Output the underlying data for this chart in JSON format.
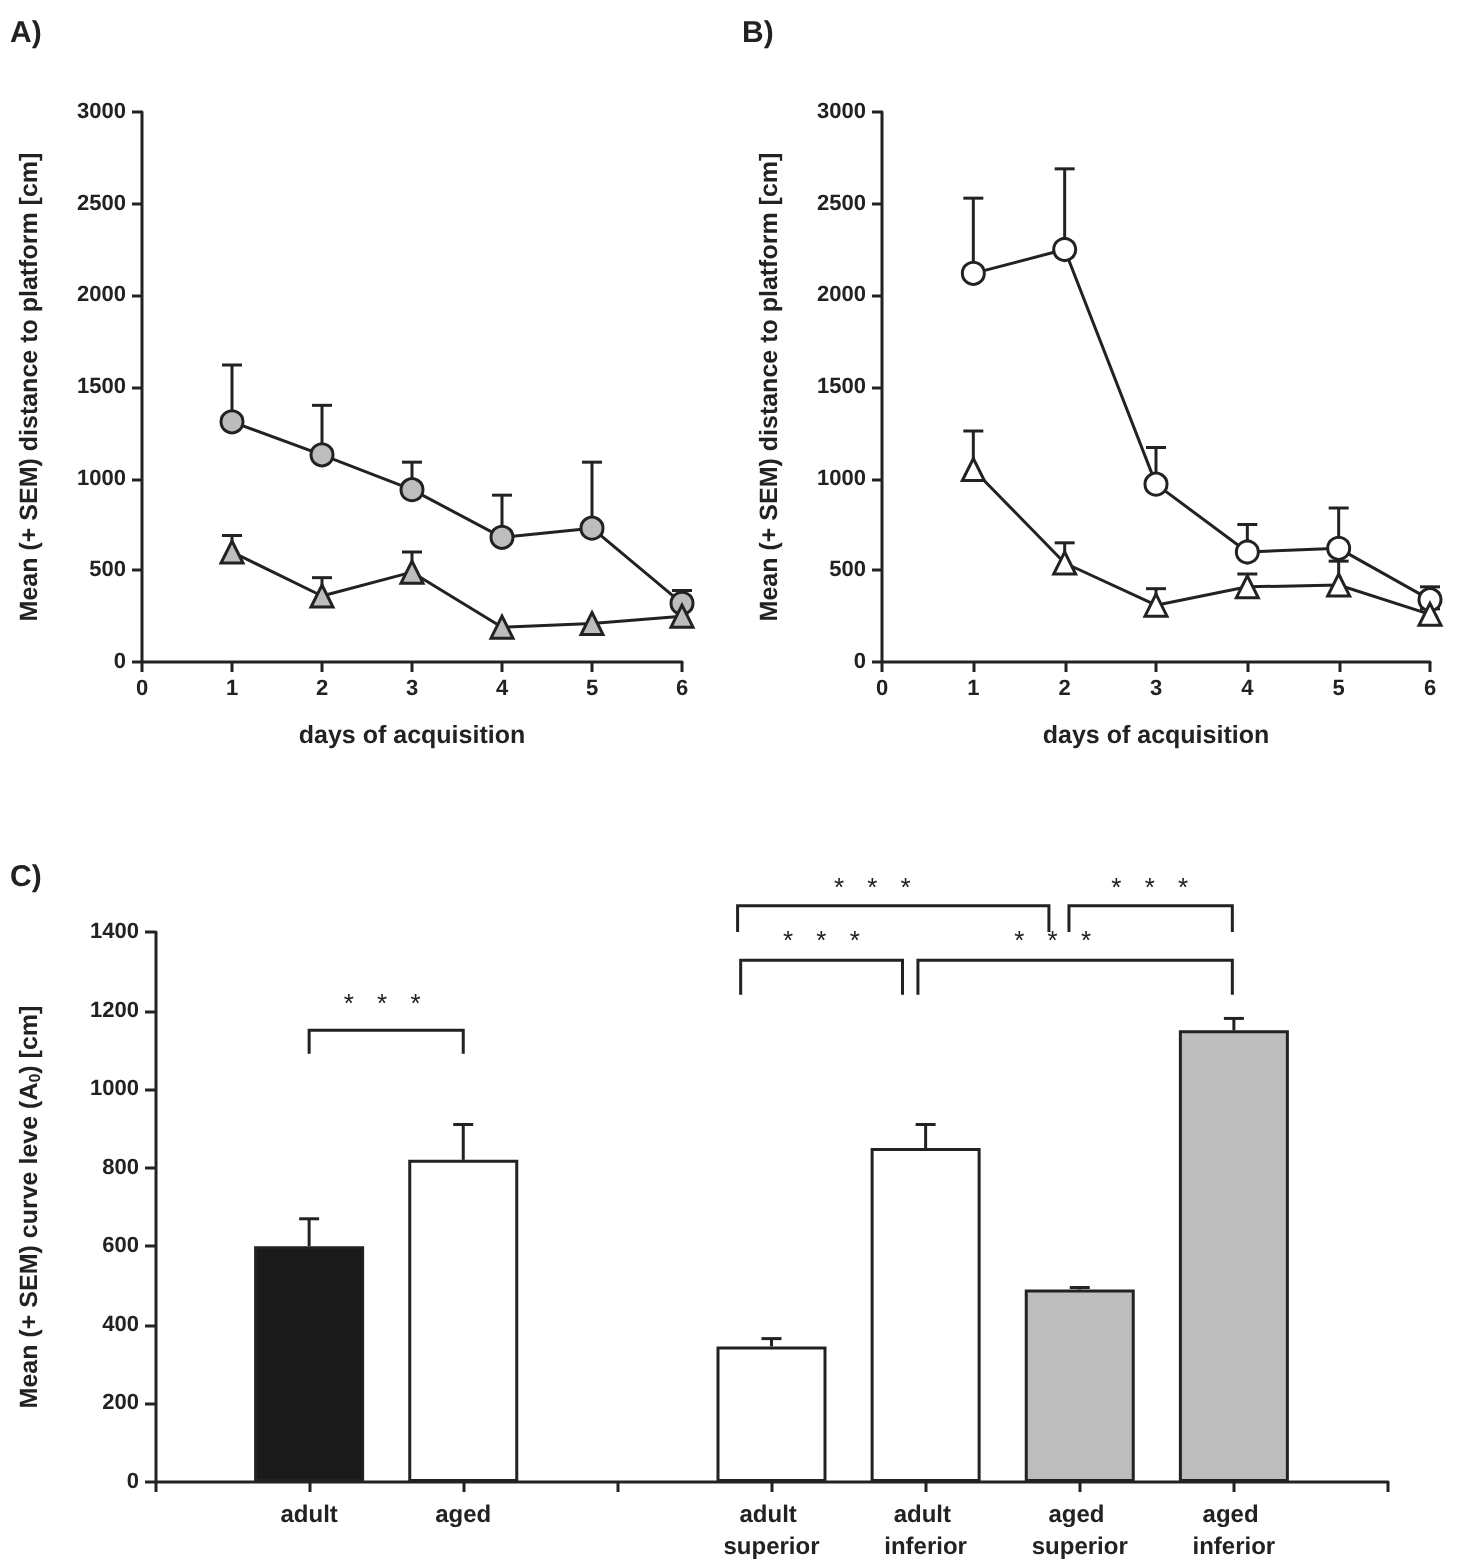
{
  "chart_data": [
    {
      "type": "line",
      "title": "A)",
      "xlabel": "days of acquisition",
      "ylabel": "Mean (+ SEM) distance to platform [cm]",
      "x": [
        1,
        2,
        3,
        4,
        5,
        6
      ],
      "xlim": [
        0,
        6
      ],
      "xticks": [
        0,
        1,
        2,
        3,
        4,
        5,
        6
      ],
      "ylim": [
        0,
        3000
      ],
      "yticks": [
        0,
        500,
        1000,
        1500,
        2000,
        2500,
        3000
      ],
      "grid": false,
      "line_style": "solid",
      "series": [
        {
          "color": "#bdbdbd",
          "marker": "circle",
          "values": [
            1310,
            1130,
            940,
            680,
            730,
            320
          ],
          "errors": [
            [
              1310,
              1620
            ],
            [
              1130,
              1400
            ],
            [
              940,
              1090
            ],
            [
              680,
              910
            ],
            [
              730,
              1090
            ],
            [
              320,
              390
            ]
          ]
        },
        {
          "color": "#bdbdbd",
          "marker": "triangle",
          "values": [
            600,
            360,
            490,
            190,
            210,
            250
          ],
          "errors": [
            [
              600,
              690
            ],
            [
              360,
              460
            ],
            [
              490,
              600
            ],
            null,
            null,
            null
          ]
        }
      ]
    },
    {
      "type": "line",
      "title": "B)",
      "xlabel": "days of acquisition",
      "ylabel": "Mean (+ SEM) distance to platform [cm]",
      "x": [
        1,
        2,
        3,
        4,
        5,
        6
      ],
      "xlim": [
        0,
        6
      ],
      "xticks": [
        0,
        1,
        2,
        3,
        4,
        5,
        6
      ],
      "ylim": [
        0,
        3000
      ],
      "yticks": [
        0,
        500,
        1000,
        1500,
        2000,
        2500,
        3000
      ],
      "grid": false,
      "line_style": "solid",
      "series": [
        {
          "color": "#ffffff",
          "marker": "circle",
          "values": [
            2120,
            2250,
            970,
            600,
            620,
            340
          ],
          "errors": [
            [
              2120,
              2530
            ],
            [
              2250,
              2690
            ],
            [
              970,
              1170
            ],
            [
              600,
              750
            ],
            [
              620,
              840
            ],
            [
              340,
              410
            ]
          ]
        },
        {
          "color": "#ffffff",
          "marker": "triangle",
          "values": [
            1050,
            540,
            310,
            410,
            420,
            260
          ],
          "errors": [
            [
              1050,
              1260
            ],
            [
              540,
              650
            ],
            [
              310,
              400
            ],
            [
              410,
              480
            ],
            [
              420,
              550
            ],
            [
              260,
              290
            ]
          ]
        }
      ]
    },
    {
      "type": "bar",
      "title": "C)",
      "ylabel": "Mean (+ SEM) curve leve (A$_{0}$) [cm]",
      "categories": [
        "adult",
        "aged",
        null,
        "adult superior",
        "adult inferior",
        "aged superior",
        "aged inferior"
      ],
      "values": [
        600,
        820,
        null,
        345,
        850,
        490,
        1150
      ],
      "colors": [
        "#1a1a1a",
        "#ffffff",
        null,
        "#ffffff",
        "#ffffff",
        "#bdbdbd",
        "#bdbdbd"
      ],
      "errors": [
        [
          600,
          670
        ],
        [
          820,
          910
        ],
        null,
        [
          345,
          365
        ],
        [
          850,
          910
        ],
        [
          490,
          495
        ],
        [
          1150,
          1180
        ]
      ],
      "ylim": [
        0,
        1400
      ],
      "yticks": [
        0,
        200,
        400,
        600,
        800,
        1000,
        1200,
        1400
      ],
      "grid": false,
      "annotations": [
        "* * *",
        "* * *",
        "* * *",
        "* * *",
        "* * *"
      ]
    }
  ]
}
